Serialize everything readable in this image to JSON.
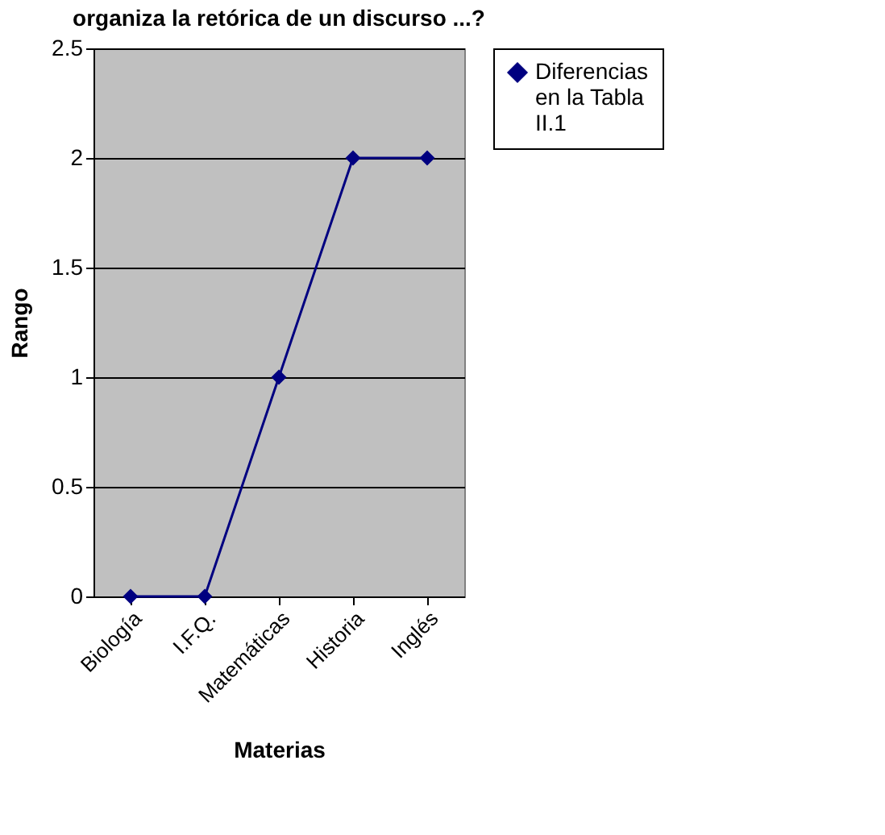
{
  "chart_data": {
    "type": "line",
    "title": "organiza la retórica de un discurso ...?",
    "xlabel": "Materias",
    "ylabel": "Rango",
    "categories": [
      "Biología",
      "I.F.Q.",
      "Matemáticas",
      "Historia",
      "Inglés"
    ],
    "series": [
      {
        "name": "Diferencias en la Tabla II.1",
        "color": "#000080",
        "values": [
          0,
          0,
          1,
          2,
          2
        ]
      }
    ],
    "ylim": [
      0,
      2.5
    ],
    "yticks": [
      0,
      0.5,
      1,
      1.5,
      2,
      2.5
    ],
    "grid": "y",
    "legend": "right",
    "marker": "diamond",
    "line_style": "solid"
  }
}
